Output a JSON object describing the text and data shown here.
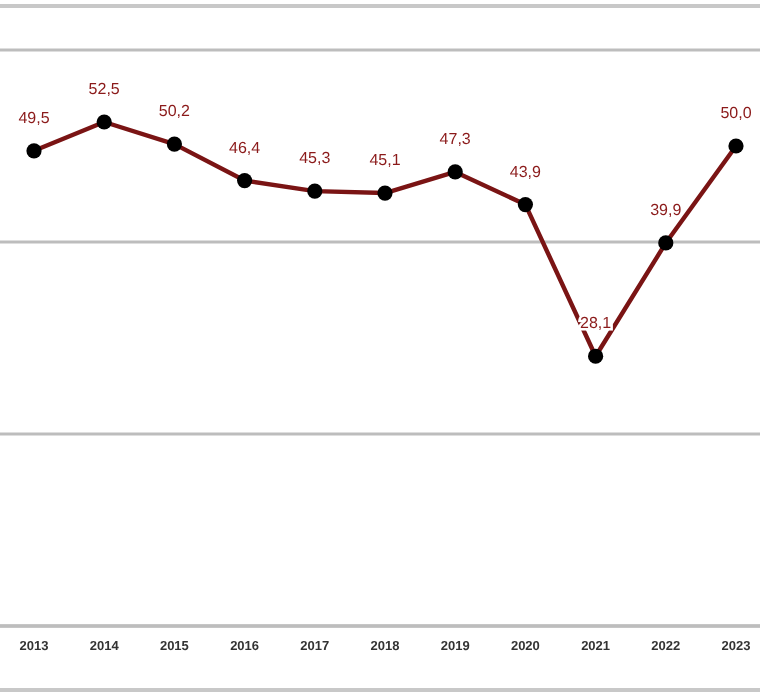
{
  "chart_data": {
    "type": "line",
    "categories": [
      "2013",
      "2014",
      "2015",
      "2016",
      "2017",
      "2018",
      "2019",
      "2020",
      "2021",
      "2022",
      "2023"
    ],
    "series": [
      {
        "color": "#7a1414",
        "values": [
          49.5,
          52.5,
          50.2,
          46.4,
          45.3,
          45.1,
          47.3,
          43.9,
          28.1,
          39.9,
          50.0
        ],
        "value_labels": [
          "49,5",
          "52,5",
          "50,2",
          "46,4",
          "45,3",
          "45,1",
          "47,3",
          "43,9",
          "28,1",
          "39,9",
          "50,0"
        ]
      }
    ],
    "ylim": [
      0,
      60
    ],
    "yticks": [
      {
        "value": 0,
        "label": null
      },
      {
        "value": 20,
        "label": null
      },
      {
        "value": 40,
        "label": null
      },
      {
        "value": 60,
        "label": null
      }
    ],
    "tick_labels": "x",
    "grid": "y",
    "marker": "circle",
    "line_style": "solid"
  }
}
